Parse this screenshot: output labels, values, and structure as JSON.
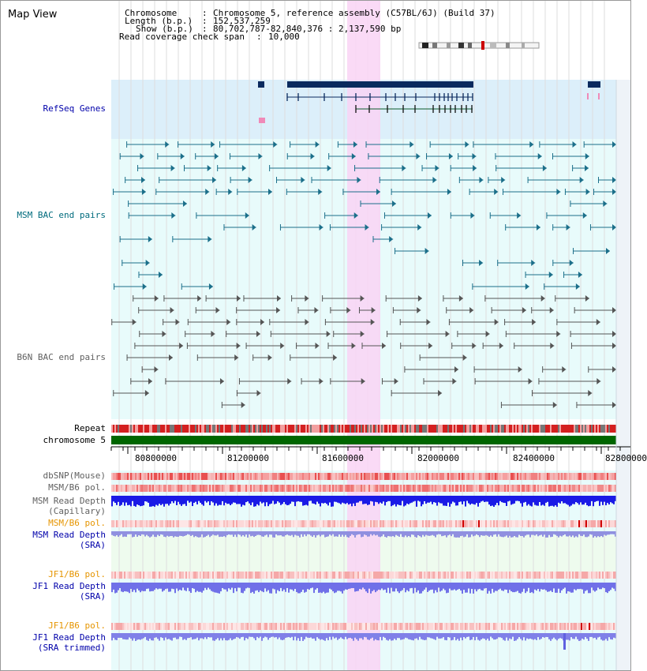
{
  "header": {
    "title": "Map View",
    "chromosome_key": "Chromosome",
    "chromosome_val": "Chromosome 5, reference assembly (C57BL/6J) (Build 37)",
    "length_key": "Length (b.p.)",
    "length_val": "152,537,259",
    "show_key": "Show (b.p.)",
    "show_val": "80,702,787-82,840,376 : 2,137,590 bp",
    "coverage_key": "Read coverage check span",
    "coverage_val": "10,000"
  },
  "tracks": {
    "refseq": "RefSeq Genes",
    "msm_bac": "MSM BAC end pairs",
    "b6n_bac": "B6N BAC end pairs",
    "repeat": "Repeat",
    "chromosome": "chromosome 5",
    "dbsnp": "dbSNP(Mouse)",
    "msm_b6_pol_1": "MSM/B6 pol.",
    "msm_read_depth_cap_1": "MSM Read Depth",
    "msm_read_depth_cap_2": "(Capillary)",
    "msm_b6_pol_2": "MSM/B6 pol.",
    "msm_read_depth_sra_1": "MSM Read Depth",
    "msm_read_depth_sra_2": "(SRA)",
    "jf1_b6_pol_1": "JF1/B6 pol.",
    "jf1_read_depth_sra_1": "JF1 Read Depth",
    "jf1_read_depth_sra_2": "(SRA)",
    "jf1_b6_pol_2": "JF1/B6 pol.",
    "jf1_read_depth_trim_1": "JF1 Read Depth",
    "jf1_read_depth_trim_2": "(SRA trimmed)"
  },
  "axis": {
    "ticks": [
      "80800000",
      "81200000",
      "81600000",
      "82000000",
      "82400000",
      "82800000"
    ]
  },
  "colors": {
    "refseq_bg": "#dceffa",
    "bac_bg": "#e8fbfb",
    "highlight": "#f9d4f5",
    "msm_bac_color": "#1b6f8a",
    "b6n_bac_color": "#555555",
    "gene_color": "#0a2a5e",
    "chromosome_bar": "#006600",
    "label_blue": "#0000aa",
    "label_teal": "#006b7d",
    "label_gray": "#606060",
    "label_orange": "#e69500"
  }
}
